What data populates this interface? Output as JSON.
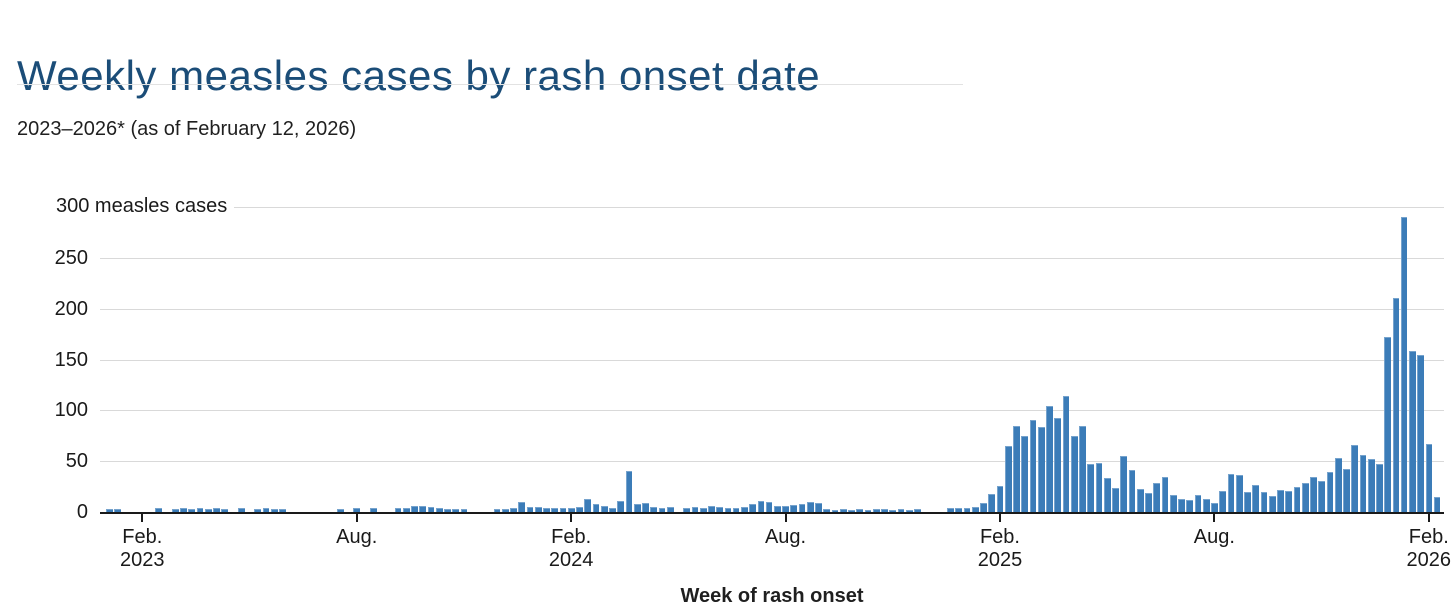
{
  "header": {
    "title": "Weekly measles cases by rash onset date",
    "subtitle": "2023–2026* (as of February 12, 2026)"
  },
  "chart_data": {
    "type": "bar",
    "title": "Weekly measles cases by rash onset date",
    "subtitle": "2023–2026* (as of February 12, 2026)",
    "xlabel": "Week of rash onset",
    "x_unit": "week of rash onset, weekly bars Jan 2023 – Feb 2026",
    "unit": "measles cases",
    "y_top_label": "300 measles cases",
    "ylim": [
      0,
      300
    ],
    "y_ticks": [
      0,
      50,
      100,
      150,
      200,
      250
    ],
    "y_top_tick": 300,
    "grid": true,
    "legend": "none",
    "x_ticks": [
      {
        "line1": "Feb.",
        "line2": "2023",
        "week": 3.9
      },
      {
        "line1": "Aug.",
        "line2": "",
        "week": 29.9
      },
      {
        "line1": "Feb.",
        "line2": "2024",
        "week": 55.9
      },
      {
        "line1": "Aug.",
        "line2": "",
        "week": 81.9
      },
      {
        "line1": "Feb.",
        "line2": "2025",
        "week": 107.9
      },
      {
        "line1": "Aug.",
        "line2": "",
        "week": 133.9
      },
      {
        "line1": "Feb.",
        "line2": "2026",
        "week": 159.9
      }
    ],
    "values": [
      3,
      3,
      0,
      0,
      0,
      0,
      4,
      0,
      3,
      4,
      3,
      4,
      3,
      4,
      3,
      0,
      4,
      0,
      3,
      4,
      3,
      3,
      0,
      0,
      0,
      0,
      0,
      0,
      3,
      0,
      4,
      0,
      4,
      0,
      0,
      4,
      4,
      6,
      6,
      5,
      4,
      3,
      3,
      3,
      0,
      0,
      0,
      3,
      3,
      4,
      10,
      5,
      5,
      4,
      4,
      4,
      4,
      5,
      13,
      8,
      6,
      4,
      11,
      40,
      8,
      9,
      5,
      4,
      5,
      0,
      4,
      5,
      4,
      6,
      5,
      4,
      4,
      5,
      8,
      11,
      10,
      6,
      6,
      7,
      8,
      10,
      9,
      3,
      2,
      3,
      2,
      3,
      2,
      3,
      3,
      2,
      3,
      2,
      3,
      0,
      0,
      0,
      4,
      4,
      4,
      5,
      9,
      18,
      26,
      65,
      85,
      75,
      90,
      84,
      104,
      92,
      114,
      75,
      85,
      47,
      48,
      33,
      24,
      55,
      41,
      23,
      19,
      29,
      34,
      17,
      13,
      12,
      17,
      13,
      9,
      21,
      37,
      36,
      20,
      27,
      20,
      16,
      22,
      21,
      25,
      29,
      34,
      30,
      39,
      53,
      42,
      66,
      56,
      52,
      47,
      172,
      210,
      290,
      158,
      154,
      67,
      15
    ]
  },
  "colors": {
    "bar": "#3b7cb8",
    "title": "#1b4d78",
    "grid": "#d9d9d9",
    "axis": "#1a1a1a",
    "text": "#1f1f1f",
    "title_rule": "#e2e2e2"
  }
}
